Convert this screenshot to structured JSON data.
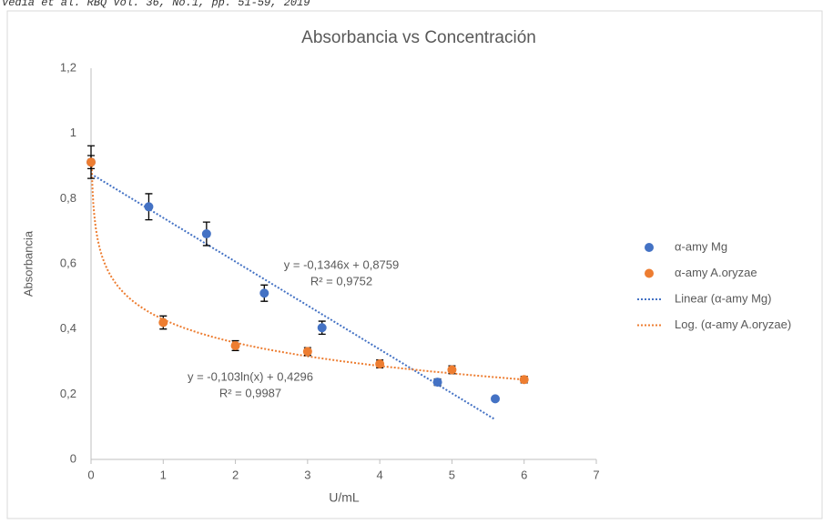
{
  "header": "Vedia et al. RBQ Vol. 36, No.1, pp. 51-59, 2019",
  "chart_data": {
    "type": "scatter",
    "title": "Absorbancia vs Concentración",
    "x_label": "U/mL",
    "y_label": "Absorbancia",
    "xlim": [
      0,
      7
    ],
    "xticks": [
      0,
      1,
      2,
      3,
      4,
      5,
      6,
      7
    ],
    "ylim": [
      0,
      1.2
    ],
    "yticks": [
      0,
      {
        "value": 0.2,
        "label": "0,2"
      },
      {
        "value": 0.4,
        "label": "0,4"
      },
      {
        "value": 0.6,
        "label": "0,6"
      },
      {
        "value": 0.8,
        "label": "0,8"
      },
      1,
      {
        "value": 1.2,
        "label": "1,2"
      }
    ],
    "grid": false,
    "legend": "right",
    "series": [
      {
        "name": "α-amy Mg",
        "color": "#4472c4",
        "x": [
          0,
          0.8,
          1.6,
          2.4,
          3.2,
          4.8,
          5.6
        ],
        "values": [
          0.912,
          0.775,
          0.692,
          0.51,
          0.404,
          0.237,
          0.186
        ],
        "errors": [
          0.05,
          0.04,
          0.036,
          0.025,
          0.02,
          0.01,
          0.005
        ]
      },
      {
        "name": "α-amy A.oryzae",
        "color": "#ed7d31",
        "x": [
          0,
          1,
          2,
          3,
          4,
          5,
          6
        ],
        "values": [
          0.912,
          0.42,
          0.349,
          0.331,
          0.293,
          0.275,
          0.245
        ],
        "errors": [
          0.02,
          0.02,
          0.015,
          0.012,
          0.012,
          0.012,
          0.01
        ]
      }
    ],
    "trendlines": [
      {
        "name": "Linear (α-amy Mg)",
        "kind": "linear",
        "color": "#4472c4",
        "coef": [
          -0.1346,
          0.8759
        ],
        "equation": "y = -0,1346x + 0,8759",
        "r2": 0.9752,
        "r2_label": "R² = 0,9752"
      },
      {
        "name": "Log. (α-amy A.oryzae)",
        "kind": "log",
        "color": "#ed7d31",
        "coef": [
          -0.103,
          0.4296
        ],
        "equation": "y = -0,103ln(x) + 0,4296",
        "r2": 0.9987,
        "r2_label": "R² = 0,9987"
      }
    ]
  }
}
